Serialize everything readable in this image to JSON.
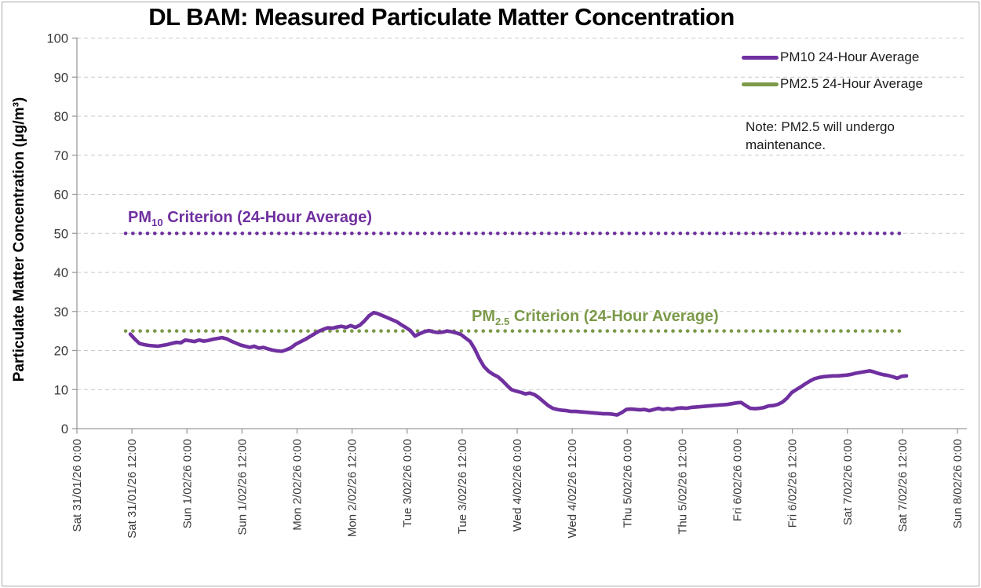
{
  "title": "DL BAM: Measured Particulate Matter Concentration",
  "y_axis": {
    "label": "Particulate Matter Concentration (µg/m³)"
  },
  "legend": {
    "items": [
      {
        "label": "PM10 24-Hour Average",
        "color": "#7030A0"
      },
      {
        "label": "PM2.5 24-Hour Average",
        "color": "#7C9A4A"
      }
    ]
  },
  "annotations": {
    "note": "Note: PM2.5 will undergo maintenance.",
    "pm10_criterion": {
      "prefix": "PM",
      "sub": "10",
      "suffix": " Criterion (24-Hour Average)"
    },
    "pm25_criterion": {
      "prefix": "PM",
      "sub": "2.5",
      "suffix": " Criterion (24-Hour Average)"
    }
  },
  "colors": {
    "pm10": "#7030A0",
    "pm25": "#7C9A4A",
    "grid": "#C9C9C9",
    "axis": "#9B9B9B",
    "tick_text": "#3A3A3A"
  },
  "chart_data": {
    "type": "line",
    "title": "DL BAM: Measured Particulate Matter Concentration",
    "xlabel": "",
    "ylabel": "Particulate Matter Concentration (µg/m³)",
    "ylim": [
      0,
      100
    ],
    "grid": "horizontal-dashed",
    "legend_position": "top-right",
    "y_ticks": [
      0,
      10,
      20,
      30,
      40,
      50,
      60,
      70,
      80,
      90,
      100
    ],
    "x_tick_labels": [
      "Sat 31/01/26 0:00",
      "Sat 31/01/26 12:00",
      "Sun 1/02/26 0:00",
      "Sun 1/02/26 12:00",
      "Mon 2/02/26 0:00",
      "Mon 2/02/26 12:00",
      "Tue 3/02/26 0:00",
      "Tue 3/02/26 12:00",
      "Wed 4/02/26 0:00",
      "Wed 4/02/26 12:00",
      "Thu 5/02/26 0:00",
      "Thu 5/02/26 12:00",
      "Fri 6/02/26 0:00",
      "Fri 6/02/26 12:00",
      "Sat 7/02/26 0:00",
      "Sat 7/02/26 12:00",
      "Sun 8/02/26 0:00"
    ],
    "reference_lines": [
      {
        "label": "PM10 Criterion (24-Hour Average)",
        "value": 50,
        "color": "#7030A0",
        "style": "dotted"
      },
      {
        "label": "PM2.5 Criterion (24-Hour Average)",
        "value": 25,
        "color": "#7C9A4A",
        "style": "dotted"
      }
    ],
    "note": "Note: PM2.5 will undergo maintenance.",
    "series": [
      {
        "name": "PM10 24-Hour Average",
        "color": "#7030A0",
        "start": "Sat 31/01/26 12:00",
        "end": "Sat 7/02/26 13:00",
        "interval_hours": 1,
        "values": [
          24.2,
          22.9,
          21.8,
          21.5,
          21.3,
          21.2,
          21.1,
          21.3,
          21.5,
          21.8,
          22.1,
          22.0,
          22.7,
          22.5,
          22.3,
          22.7,
          22.4,
          22.6,
          22.9,
          23.1,
          23.3,
          23.0,
          22.4,
          21.9,
          21.4,
          21.1,
          20.8,
          21.1,
          20.6,
          20.8,
          20.4,
          20.1,
          19.9,
          19.8,
          20.2,
          20.7,
          21.6,
          22.2,
          22.8,
          23.5,
          24.2,
          24.9,
          25.4,
          25.8,
          25.7,
          26.0,
          26.2,
          25.9,
          26.4,
          25.9,
          26.5,
          27.6,
          28.9,
          29.7,
          29.4,
          28.9,
          28.4,
          27.9,
          27.4,
          26.6,
          25.9,
          25.1,
          23.7,
          24.3,
          24.8,
          25.1,
          24.8,
          24.6,
          24.7,
          25.0,
          24.8,
          24.5,
          24.1,
          23.2,
          22.3,
          20.4,
          17.9,
          15.9,
          14.7,
          13.9,
          13.3,
          12.3,
          11.1,
          10.0,
          9.6,
          9.3,
          8.9,
          9.1,
          8.7,
          7.9,
          6.9,
          5.9,
          5.2,
          4.9,
          4.7,
          4.6,
          4.4,
          4.4,
          4.3,
          4.2,
          4.1,
          4.0,
          3.9,
          3.8,
          3.8,
          3.7,
          3.5,
          4.1,
          4.9,
          5.0,
          4.9,
          4.8,
          4.9,
          4.6,
          4.9,
          5.2,
          4.9,
          5.1,
          4.9,
          5.2,
          5.3,
          5.2,
          5.4,
          5.5,
          5.6,
          5.7,
          5.8,
          5.9,
          6.0,
          6.1,
          6.2,
          6.4,
          6.6,
          6.7,
          5.9,
          5.2,
          5.1,
          5.2,
          5.4,
          5.8,
          5.9,
          6.2,
          6.8,
          7.8,
          9.2,
          10.0,
          10.7,
          11.5,
          12.2,
          12.8,
          13.1,
          13.3,
          13.4,
          13.5,
          13.5,
          13.6,
          13.7,
          13.9,
          14.2,
          14.4,
          14.6,
          14.8,
          14.5,
          14.1,
          13.8,
          13.6,
          13.3,
          12.9,
          13.4,
          13.5
        ]
      },
      {
        "name": "PM2.5 24-Hour Average",
        "color": "#7C9A4A",
        "values": []
      }
    ]
  }
}
